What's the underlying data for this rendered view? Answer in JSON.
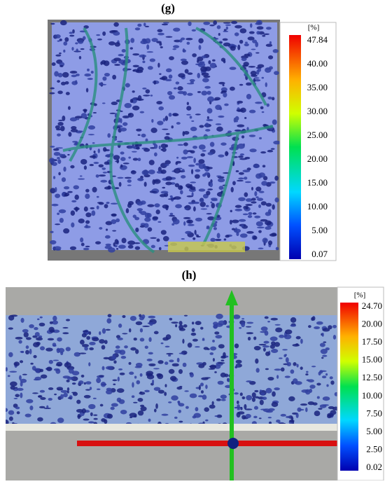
{
  "panels": [
    {
      "label": "(g)",
      "unit": "[%]",
      "ticks": [
        "47.84",
        "40.00",
        "35.00",
        "30.00",
        "25.00",
        "20.00",
        "15.00",
        "10.00",
        "5.00",
        "0.07"
      ]
    },
    {
      "label": "(h)",
      "unit": "[%]",
      "ticks": [
        "24.70",
        "20.00",
        "17.50",
        "15.00",
        "12.50",
        "10.00",
        "7.50",
        "5.00",
        "2.50",
        "0.02"
      ]
    }
  ]
}
